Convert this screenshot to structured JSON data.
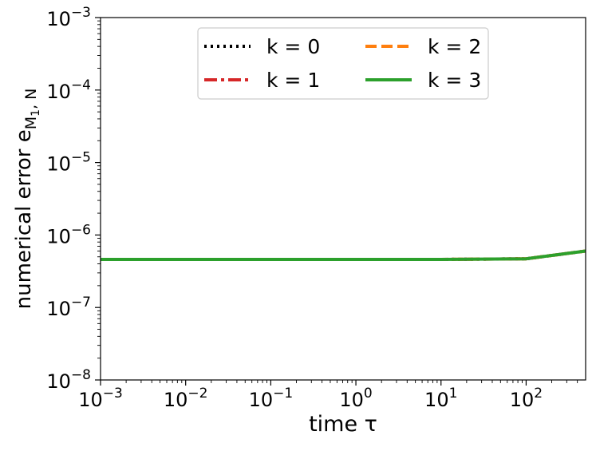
{
  "chart_data": {
    "type": "line",
    "xscale": "log",
    "yscale": "log",
    "xlim": [
      0.001,
      500
    ],
    "ylim": [
      1e-08,
      0.001
    ],
    "xlabel": "time τ",
    "ylabel": {
      "text": "numerical error e",
      "subscript": "M",
      "subsub": "1",
      "tail": ", N"
    },
    "x_ticks": [
      {
        "value": 0.001,
        "base": "10",
        "exp": "−3"
      },
      {
        "value": 0.01,
        "base": "10",
        "exp": "−2"
      },
      {
        "value": 0.1,
        "base": "10",
        "exp": "−1"
      },
      {
        "value": 1,
        "base": "10",
        "exp": "0"
      },
      {
        "value": 10,
        "base": "10",
        "exp": "1"
      },
      {
        "value": 100,
        "base": "10",
        "exp": "2"
      }
    ],
    "y_ticks": [
      {
        "value": 1e-08,
        "base": "10",
        "exp": "−8"
      },
      {
        "value": 1e-07,
        "base": "10",
        "exp": "−7"
      },
      {
        "value": 1e-06,
        "base": "10",
        "exp": "−6"
      },
      {
        "value": 1e-05,
        "base": "10",
        "exp": "−5"
      },
      {
        "value": 0.0001,
        "base": "10",
        "exp": "−4"
      },
      {
        "value": 0.001,
        "base": "10",
        "exp": "−3"
      }
    ],
    "legend_position": "top-center",
    "legend_columns": 2,
    "series": [
      {
        "name": "k = 0",
        "color": "#000000",
        "style": "dotted",
        "x": [
          0.001,
          0.01,
          0.1,
          1,
          10,
          100,
          500
        ],
        "y": [
          4.6e-07,
          4.6e-07,
          4.6e-07,
          4.6e-07,
          4.6e-07,
          4.7e-07,
          6e-07
        ]
      },
      {
        "name": "k = 1",
        "color": "#d62728",
        "style": "dashdot",
        "x": [
          0.001,
          0.01,
          0.1,
          1,
          10,
          100,
          500
        ],
        "y": [
          4.6e-07,
          4.6e-07,
          4.6e-07,
          4.6e-07,
          4.6e-07,
          4.7e-07,
          6e-07
        ]
      },
      {
        "name": "k = 2",
        "color": "#ff7f0e",
        "style": "dashed",
        "x": [
          0.001,
          0.01,
          0.1,
          1,
          10,
          100,
          500
        ],
        "y": [
          4.6e-07,
          4.6e-07,
          4.6e-07,
          4.6e-07,
          4.6e-07,
          4.7e-07,
          6e-07
        ]
      },
      {
        "name": "k = 3",
        "color": "#2ca02c",
        "style": "solid",
        "x": [
          0.001,
          0.01,
          0.1,
          1,
          10,
          100,
          500
        ],
        "y": [
          4.6e-07,
          4.6e-07,
          4.6e-07,
          4.6e-07,
          4.6e-07,
          4.7e-07,
          6e-07
        ]
      }
    ]
  }
}
